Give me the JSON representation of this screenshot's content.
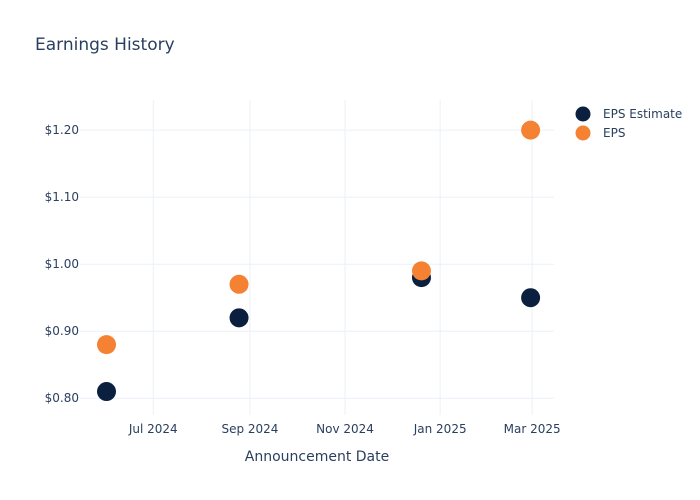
{
  "chart_data": {
    "type": "scatter",
    "title": "Earnings History",
    "xlabel": "Announcement Date",
    "ylabel": "",
    "x_tick_labels": [
      "Jul 2024",
      "Sep 2024",
      "Nov 2024",
      "Jan 2025",
      "Mar 2025"
    ],
    "x_ticks": [
      "2024-07-01",
      "2024-09-01",
      "2024-11-01",
      "2025-01-01",
      "2025-03-01"
    ],
    "xlim": [
      "2024-05-15",
      "2025-03-15"
    ],
    "y_tick_labels": [
      "$0.80",
      "$0.90",
      "$1.00",
      "$1.10",
      "$1.20"
    ],
    "y_ticks": [
      0.8,
      0.9,
      1.0,
      1.1,
      1.2
    ],
    "ylim": [
      0.775,
      1.245
    ],
    "grid": true,
    "legend_position": "top-right",
    "series": [
      {
        "name": "EPS Estimate",
        "color": "#0b1f3f",
        "points": [
          {
            "x": "2024-06-01",
            "y": 0.81
          },
          {
            "x": "2024-08-25",
            "y": 0.92
          },
          {
            "x": "2024-12-20",
            "y": 0.98
          },
          {
            "x": "2025-02-28",
            "y": 0.95
          }
        ]
      },
      {
        "name": "EPS",
        "color": "#f58233",
        "points": [
          {
            "x": "2024-06-01",
            "y": 0.88
          },
          {
            "x": "2024-08-25",
            "y": 0.97
          },
          {
            "x": "2024-12-20",
            "y": 0.99
          },
          {
            "x": "2025-02-28",
            "y": 1.2
          }
        ]
      }
    ]
  }
}
